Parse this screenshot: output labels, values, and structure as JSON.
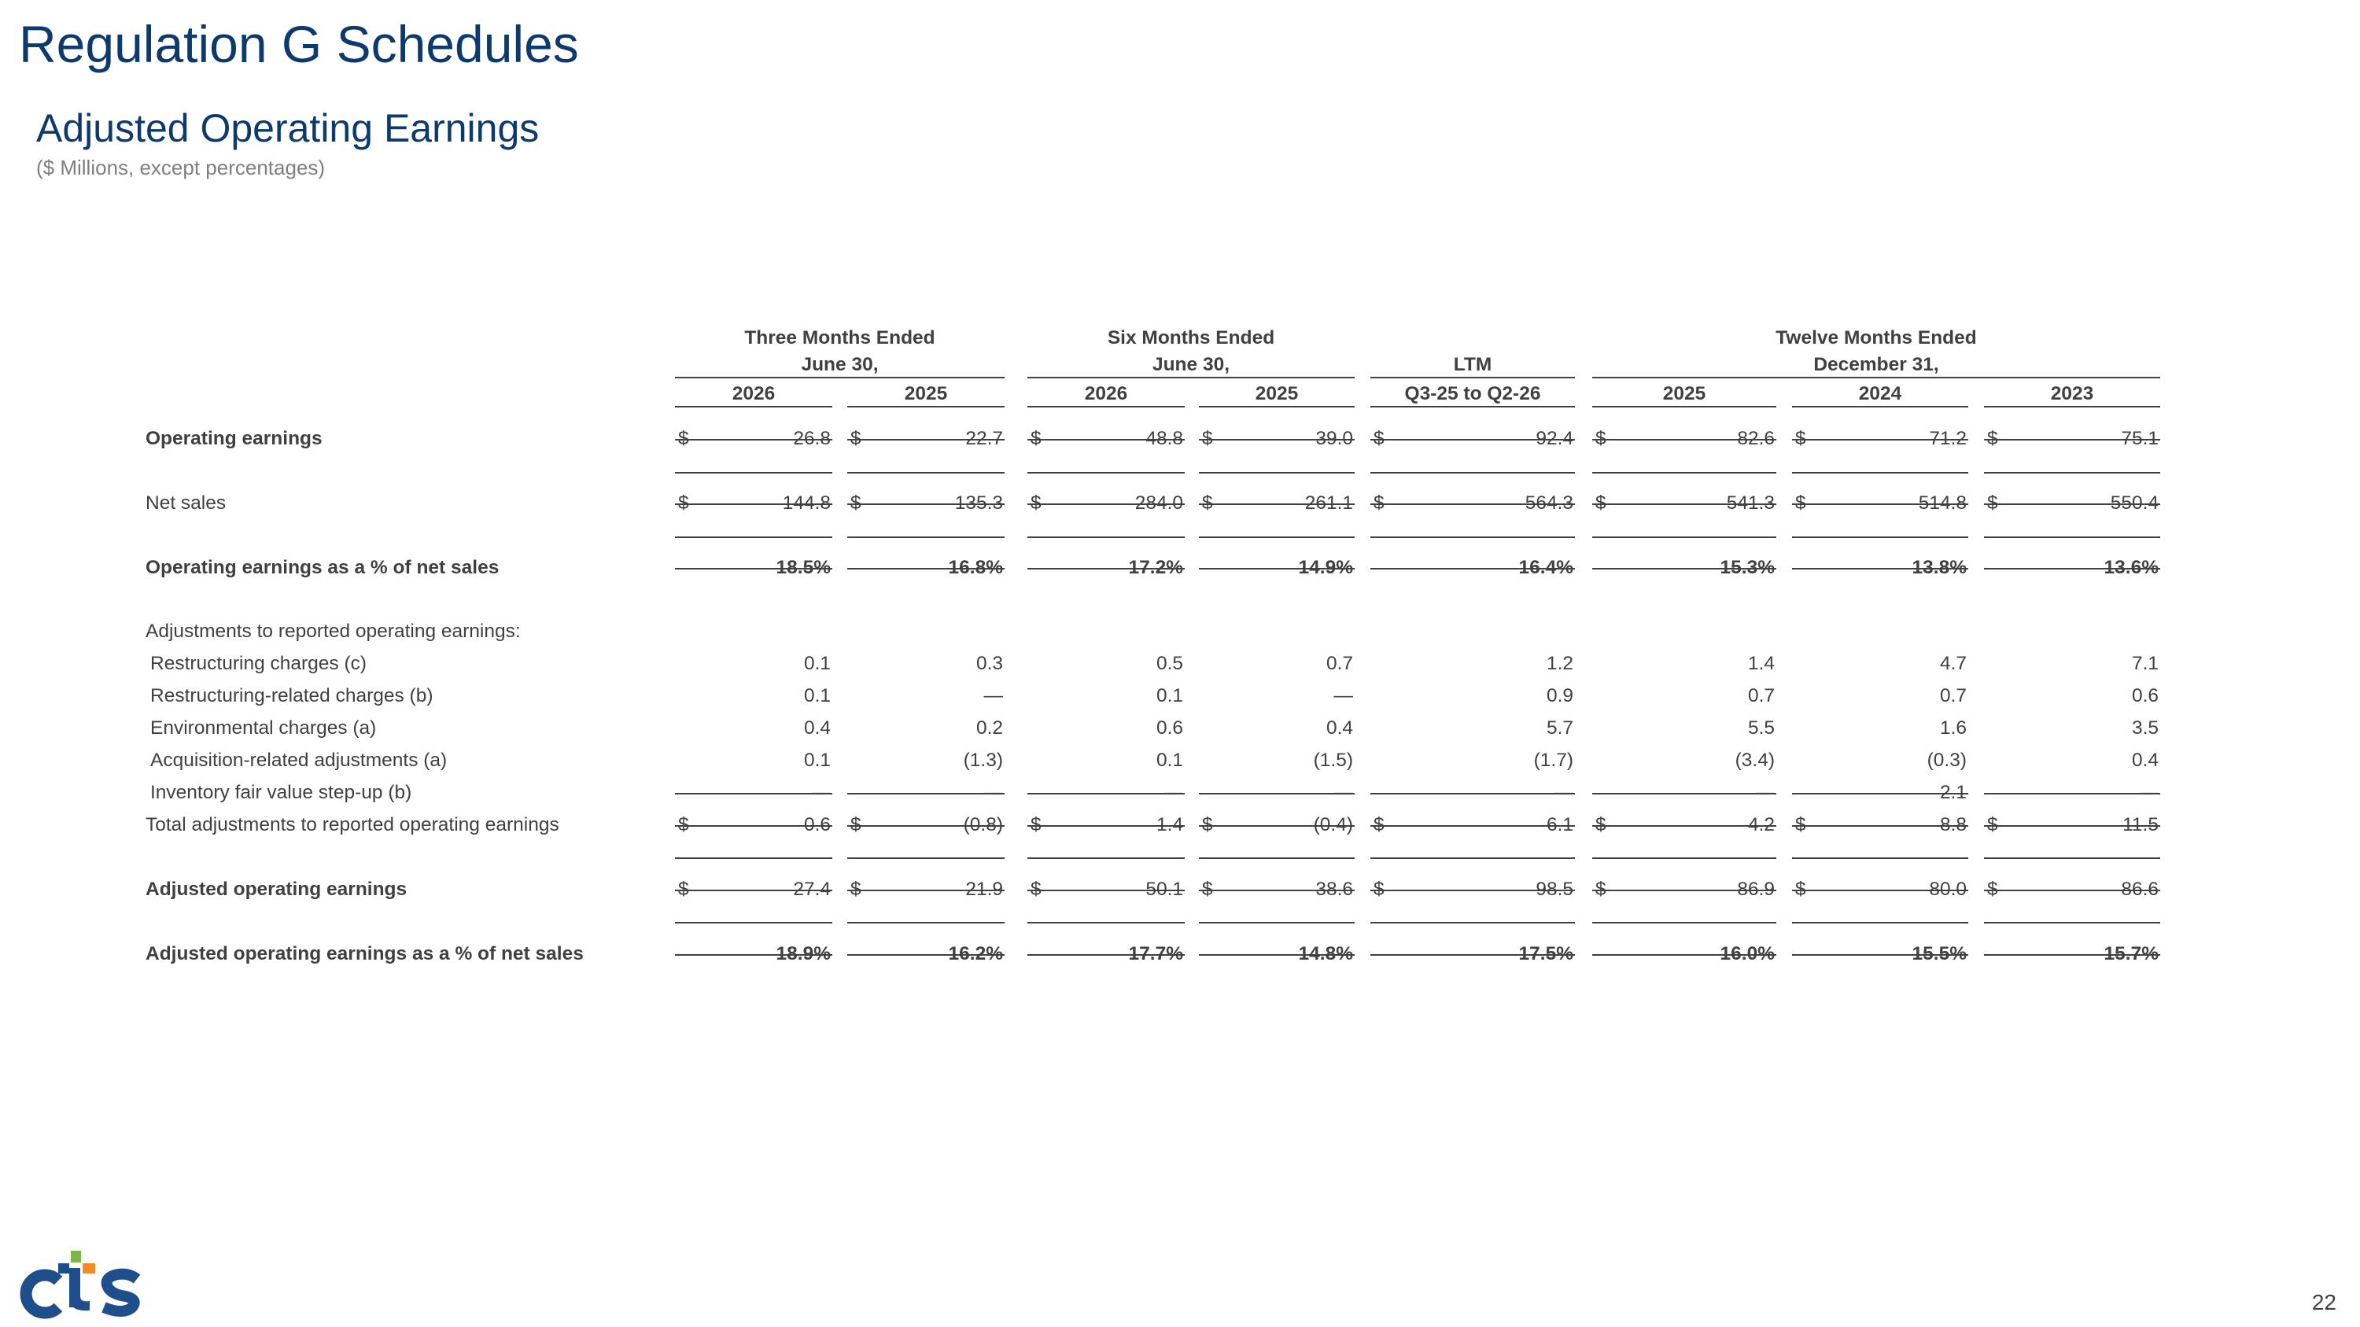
{
  "header": {
    "title": "Regulation G Schedules",
    "subtitle": "Adjusted Operating Earnings",
    "units": "($ Millions, except percentages)"
  },
  "groups": [
    {
      "line1": "Three Months Ended",
      "line2": "June 30,"
    },
    {
      "line1": "Six Months Ended",
      "line2": "June 30,"
    },
    {
      "line1": "",
      "line2": "LTM"
    },
    {
      "line1": "Twelve Months Ended",
      "line2": "December 31,"
    }
  ],
  "columns": [
    "2026",
    "2025",
    "2026",
    "2025",
    "Q3-25 to Q2-26",
    "2025",
    "2024",
    "2023"
  ],
  "currency_symbol": "$",
  "rows": [
    {
      "label": "Operating earnings",
      "bold": true,
      "dollar": true,
      "values": [
        "26.8",
        "22.7",
        "48.8",
        "39.0",
        "92.4",
        "82.6",
        "71.2",
        "75.1"
      ]
    },
    {
      "label": "Net sales",
      "bold": false,
      "dollar": true,
      "values": [
        "144.8",
        "135.3",
        "284.0",
        "261.1",
        "564.3",
        "541.3",
        "514.8",
        "550.4"
      ]
    },
    {
      "label": "Operating earnings as a % of net sales",
      "bold": true,
      "dollar": false,
      "values": [
        "18.5%",
        "16.8%",
        "17.2%",
        "14.9%",
        "16.4%",
        "15.3%",
        "13.8%",
        "13.6%"
      ]
    },
    {
      "label": "Adjustments to reported operating earnings:",
      "bold": false,
      "dollar": false,
      "values": []
    },
    {
      "label": "Restructuring charges (c)",
      "bold": false,
      "dollar": false,
      "values": [
        "0.1",
        "0.3",
        "0.5",
        "0.7",
        "1.2",
        "1.4",
        "4.7",
        "7.1"
      ]
    },
    {
      "label": "Restructuring-related charges (b)",
      "bold": false,
      "dollar": false,
      "values": [
        "0.1",
        "—",
        "0.1",
        "—",
        "0.9",
        "0.7",
        "0.7",
        "0.6"
      ]
    },
    {
      "label": "Environmental charges (a)",
      "bold": false,
      "dollar": false,
      "values": [
        "0.4",
        "0.2",
        "0.6",
        "0.4",
        "5.7",
        "5.5",
        "1.6",
        "3.5"
      ]
    },
    {
      "label": "Acquisition-related adjustments (a)",
      "bold": false,
      "dollar": false,
      "values": [
        "0.1",
        "(1.3)",
        "0.1",
        "(1.5)",
        "(1.7)",
        "(3.4)",
        "(0.3)",
        "0.4"
      ]
    },
    {
      "label": "Inventory fair value step-up (b)",
      "bold": false,
      "dollar": false,
      "values": [
        "—",
        "—",
        "—",
        "—",
        "—",
        "—",
        "2.1",
        "—"
      ]
    },
    {
      "label": "Total adjustments to reported operating earnings",
      "bold": false,
      "dollar": true,
      "values": [
        "0.6",
        "(0.8)",
        "1.4",
        "(0.4)",
        "6.1",
        "4.2",
        "8.8",
        "11.5"
      ]
    },
    {
      "label": "Adjusted operating earnings",
      "bold": true,
      "dollar": true,
      "values": [
        "27.4",
        "21.9",
        "50.1",
        "38.6",
        "98.5",
        "86.9",
        "80.0",
        "86.6"
      ]
    },
    {
      "label": "Adjusted operating earnings as a % of net sales",
      "bold": true,
      "dollar": false,
      "values": [
        "18.9%",
        "16.2%",
        "17.7%",
        "14.8%",
        "17.5%",
        "16.0%",
        "15.5%",
        "15.7%"
      ]
    }
  ],
  "page_number": "22",
  "logo": {
    "text": "CTS",
    "colors": {
      "blue": "#1f4e8c",
      "green": "#7ab648",
      "orange": "#f28c28"
    }
  }
}
